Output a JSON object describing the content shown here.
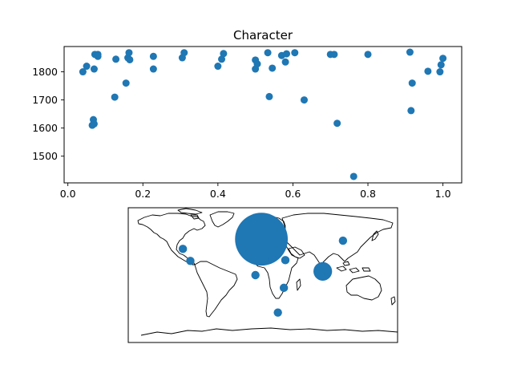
{
  "chart_data": [
    {
      "type": "scatter",
      "title": "Character",
      "xlabel": "",
      "ylabel": "",
      "xlim": [
        -0.01,
        1.05
      ],
      "ylim": [
        1405,
        1890
      ],
      "xticks": [
        0.0,
        0.2,
        0.4,
        0.6,
        0.8,
        1.0
      ],
      "xtick_labels": [
        "0.0",
        "0.2",
        "0.4",
        "0.6",
        "0.8",
        "1.0"
      ],
      "yticks": [
        1500,
        1600,
        1700,
        1800
      ],
      "ytick_labels": [
        "1500",
        "1600",
        "1700",
        "1800"
      ],
      "grid": false,
      "color": "#1f77b4",
      "points": [
        {
          "x": 0.04,
          "y": 1800
        },
        {
          "x": 0.05,
          "y": 1820
        },
        {
          "x": 0.065,
          "y": 1610
        },
        {
          "x": 0.068,
          "y": 1630
        },
        {
          "x": 0.07,
          "y": 1615
        },
        {
          "x": 0.07,
          "y": 1810
        },
        {
          "x": 0.072,
          "y": 1862
        },
        {
          "x": 0.08,
          "y": 1855
        },
        {
          "x": 0.08,
          "y": 1862
        },
        {
          "x": 0.125,
          "y": 1710
        },
        {
          "x": 0.128,
          "y": 1845
        },
        {
          "x": 0.155,
          "y": 1760
        },
        {
          "x": 0.16,
          "y": 1850
        },
        {
          "x": 0.163,
          "y": 1868
        },
        {
          "x": 0.165,
          "y": 1843
        },
        {
          "x": 0.228,
          "y": 1855
        },
        {
          "x": 0.228,
          "y": 1810
        },
        {
          "x": 0.305,
          "y": 1850
        },
        {
          "x": 0.31,
          "y": 1868
        },
        {
          "x": 0.4,
          "y": 1820
        },
        {
          "x": 0.41,
          "y": 1845
        },
        {
          "x": 0.415,
          "y": 1865
        },
        {
          "x": 0.5,
          "y": 1842
        },
        {
          "x": 0.5,
          "y": 1810
        },
        {
          "x": 0.505,
          "y": 1828
        },
        {
          "x": 0.533,
          "y": 1868
        },
        {
          "x": 0.537,
          "y": 1712
        },
        {
          "x": 0.545,
          "y": 1813
        },
        {
          "x": 0.57,
          "y": 1858
        },
        {
          "x": 0.58,
          "y": 1835
        },
        {
          "x": 0.583,
          "y": 1864
        },
        {
          "x": 0.605,
          "y": 1868
        },
        {
          "x": 0.63,
          "y": 1700
        },
        {
          "x": 0.7,
          "y": 1862
        },
        {
          "x": 0.71,
          "y": 1862
        },
        {
          "x": 0.718,
          "y": 1617
        },
        {
          "x": 0.762,
          "y": 1428
        },
        {
          "x": 0.8,
          "y": 1862
        },
        {
          "x": 0.912,
          "y": 1870
        },
        {
          "x": 0.915,
          "y": 1662
        },
        {
          "x": 0.918,
          "y": 1760
        },
        {
          "x": 0.96,
          "y": 1802
        },
        {
          "x": 0.992,
          "y": 1800
        },
        {
          "x": 0.995,
          "y": 1825
        },
        {
          "x": 1.0,
          "y": 1848
        }
      ]
    },
    {
      "type": "scatter",
      "projection": "world map (equirectangular) with coastlines",
      "xlim": [
        -180,
        180
      ],
      "ylim": [
        -90,
        90
      ],
      "color": "#1f77b4",
      "points": [
        {
          "lon": -107,
          "lat": 35,
          "size": 1
        },
        {
          "lon": -97,
          "lat": 19,
          "size": 1
        },
        {
          "lon": -20,
          "lat": 50,
          "size": 1
        },
        {
          "lon": -2,
          "lat": 48,
          "size": 40
        },
        {
          "lon": 12,
          "lat": 22,
          "size": 1
        },
        {
          "lon": 30,
          "lat": 20,
          "size": 1
        },
        {
          "lon": -10,
          "lat": 0,
          "size": 1
        },
        {
          "lon": 28,
          "lat": -17,
          "size": 1
        },
        {
          "lon": 20,
          "lat": -50,
          "size": 1
        },
        {
          "lon": 80,
          "lat": 5,
          "size": 5
        },
        {
          "lon": 107,
          "lat": 46,
          "size": 1
        }
      ]
    }
  ]
}
